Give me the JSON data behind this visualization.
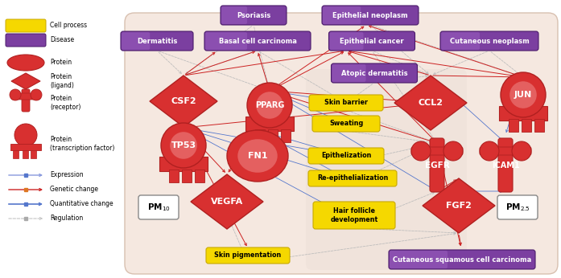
{
  "figure_bg": "#ffffff",
  "panel_bg": "#F5E8E0",
  "panel_bg2": "#EDE0D8",
  "disease_color": "#7B3FA0",
  "disease_grad": "#9B5FC0",
  "cp_color": "#F5D800",
  "cp_edge": "#C8A800",
  "protein_red": "#D83030",
  "protein_light": "#F09090",
  "protein_edge": "#B02020",
  "legend": {
    "cell_process": "Cell process",
    "disease": "Disease",
    "protein": "Protein",
    "protein_ligand": "Protein\n(ligand)",
    "protein_receptor": "Protein\n(receptor)",
    "protein_tf": "Protein\n(transcription factor)",
    "expression": "Expression",
    "genetic": "Genetic change",
    "quantitative": "Quantitative change",
    "regulation": "Regulation"
  }
}
